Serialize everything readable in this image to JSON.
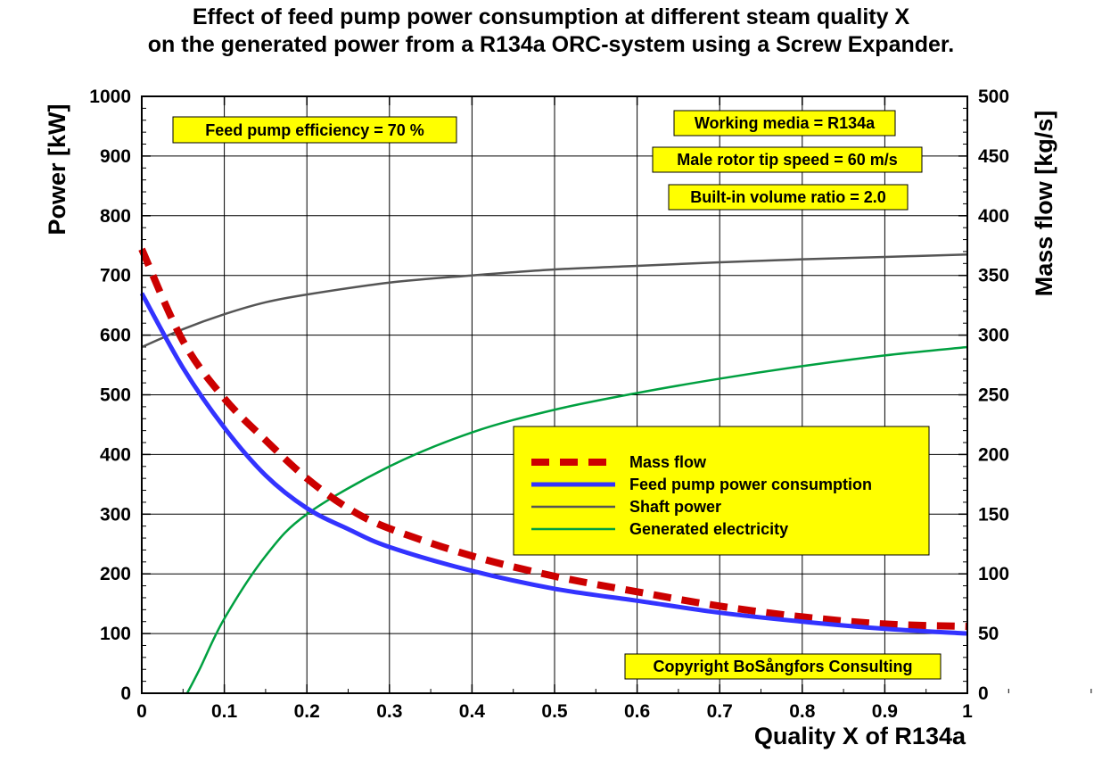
{
  "chart_data": {
    "type": "line",
    "title": [
      "Effect of feed pump power consumption at different steam quality X",
      "on the generated power from a R134a ORC-system using a Screw Expander."
    ],
    "xlabel": "Quality X of R134a",
    "ylabel": "Power [kW]",
    "y2label": "Mass flow [kg/s]",
    "xlim": [
      0,
      1
    ],
    "ylim": [
      0,
      1000
    ],
    "y2lim": [
      0,
      500
    ],
    "grid": true,
    "legend_position": "center-right",
    "x_ticks": [
      "0",
      "0.1",
      "0.2",
      "0.3",
      "0.4",
      "0.5",
      "0.6",
      "0.7",
      "0.8",
      "0.9",
      "1"
    ],
    "y_ticks": [
      "0",
      "100",
      "200",
      "300",
      "400",
      "500",
      "600",
      "700",
      "800",
      "900",
      "1000"
    ],
    "y2_ticks": [
      "0",
      "50",
      "100",
      "150",
      "200",
      "250",
      "300",
      "350",
      "400",
      "450",
      "500"
    ],
    "annotations": [
      "Feed pump efficiency = 70 %",
      "Working media = R134a",
      "Male rotor tip speed = 60 m/s",
      "Built-in volume ratio = 2.0",
      "Copyright BoSångfors Consulting"
    ],
    "series": [
      {
        "name": "Mass flow",
        "axis": "right",
        "color": "#cc0000",
        "style": "dashed",
        "x": [
          0,
          0.05,
          0.1,
          0.15,
          0.2,
          0.25,
          0.3,
          0.4,
          0.5,
          0.6,
          0.7,
          0.8,
          0.9,
          1.0
        ],
        "values": [
          372,
          295,
          247,
          212,
          180,
          155,
          138,
          115,
          98,
          85,
          73,
          64,
          58,
          56
        ]
      },
      {
        "name": "Feed pump power consumption",
        "axis": "left",
        "color": "#3333ff",
        "style": "solid",
        "x": [
          0,
          0.05,
          0.1,
          0.15,
          0.2,
          0.25,
          0.3,
          0.4,
          0.5,
          0.6,
          0.7,
          0.8,
          0.9,
          1.0
        ],
        "values": [
          670,
          545,
          445,
          365,
          310,
          275,
          245,
          205,
          175,
          155,
          135,
          120,
          108,
          100
        ]
      },
      {
        "name": "Shaft power",
        "axis": "left",
        "color": "#555555",
        "style": "solid",
        "x": [
          0,
          0.05,
          0.1,
          0.15,
          0.2,
          0.3,
          0.4,
          0.5,
          0.6,
          0.7,
          0.8,
          0.9,
          1.0
        ],
        "values": [
          580,
          610,
          635,
          655,
          668,
          688,
          700,
          710,
          716,
          722,
          727,
          731,
          735
        ]
      },
      {
        "name": "Generated electricity",
        "axis": "left",
        "color": "#00a040",
        "style": "solid",
        "x": [
          0.055,
          0.07,
          0.1,
          0.15,
          0.2,
          0.3,
          0.4,
          0.5,
          0.6,
          0.7,
          0.8,
          0.9,
          1.0
        ],
        "values": [
          0,
          40,
          125,
          230,
          300,
          380,
          437,
          475,
          503,
          527,
          548,
          566,
          580
        ]
      }
    ]
  }
}
